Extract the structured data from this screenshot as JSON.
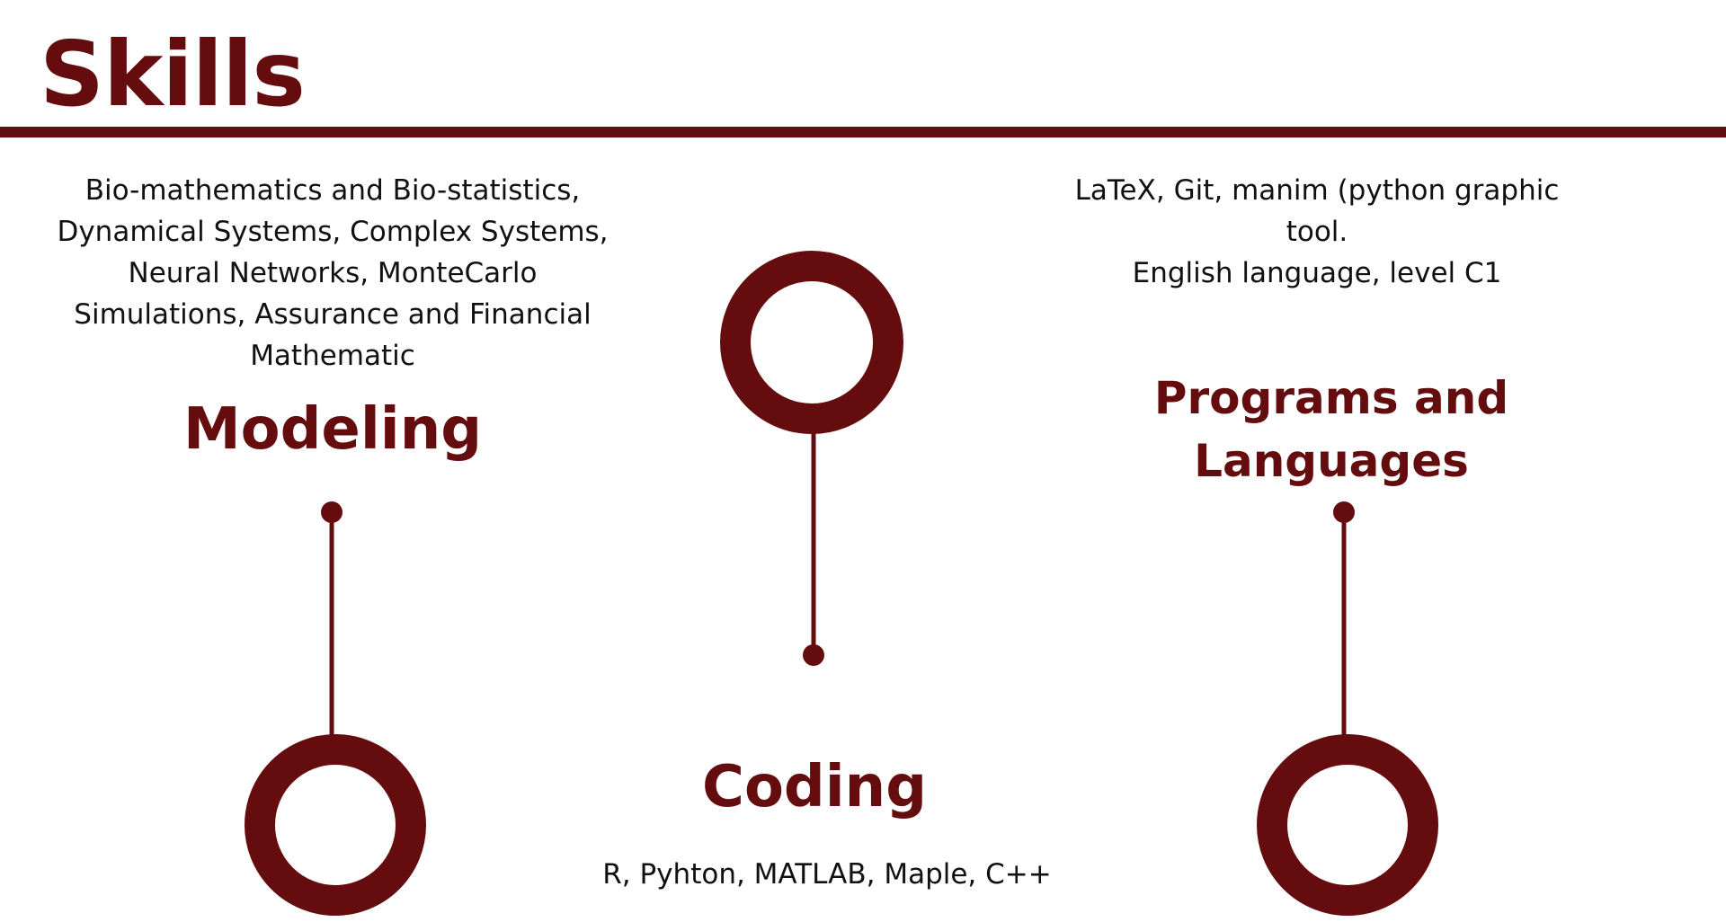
{
  "page": {
    "title": "Skills",
    "accent_color": "#650c0e"
  },
  "modeling": {
    "heading": "Modeling",
    "description": "Bio-mathematics and Bio-statistics,\nDynamical Systems, Complex Systems,\nNeural Networks, MonteCarlo\nSimulations, Assurance and Financial\nMathematic"
  },
  "coding": {
    "heading": "Coding",
    "description": "R, Pyhton, MATLAB, Maple, C++"
  },
  "programs": {
    "heading": "Programs and\nLanguages",
    "description": "LaTeX, Git, manim (python graphic\ntool.\nEnglish language, level C1"
  }
}
